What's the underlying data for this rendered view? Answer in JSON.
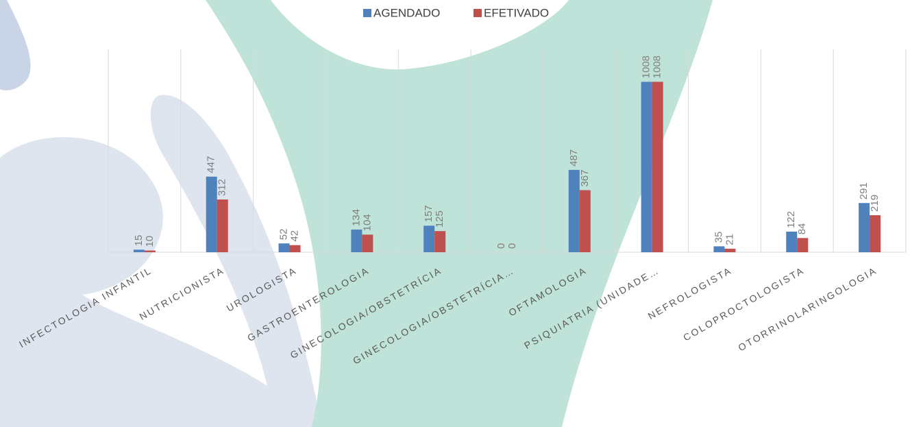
{
  "chart_data": {
    "type": "bar",
    "categories": [
      "INFECTOLOGIA INFANTIL",
      "NUTRICIONISTA",
      "UROLOGISTA",
      "GASTROENTEROLOGIA",
      "GINECOLOGIA/OBSTETRÍCIA",
      "GINECOLOGIA/OBSTETRÍCIA…",
      "OFTAMOLOGIA",
      "PSIQUIATRIA (UNIDADE…",
      "NEFROLOGISTA",
      "COLOPROCTOLOGISTA",
      "OTORRINOLARINGOLOGIA"
    ],
    "series": [
      {
        "name": "AGENDADO",
        "color": "#4f81bd",
        "values": [
          15,
          447,
          52,
          134,
          157,
          0,
          487,
          1008,
          35,
          122,
          291
        ]
      },
      {
        "name": "EFETIVADO",
        "color": "#c0504d",
        "values": [
          10,
          312,
          42,
          104,
          125,
          0,
          367,
          1008,
          21,
          84,
          219
        ]
      }
    ],
    "ylim": [
      0,
      1200
    ],
    "grid": true,
    "legend": "top"
  }
}
